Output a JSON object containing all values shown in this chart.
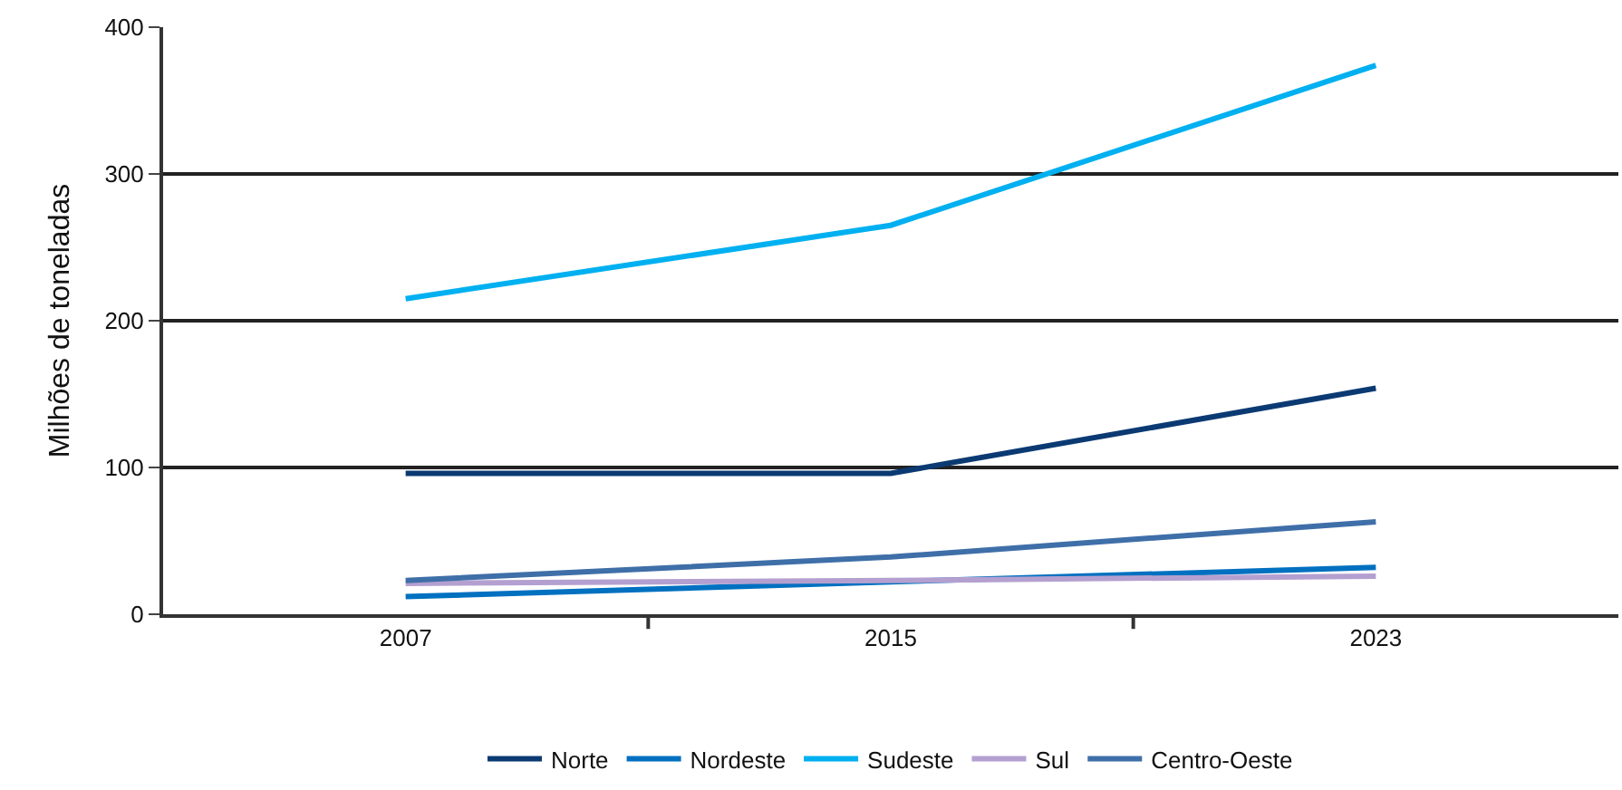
{
  "chart_data": {
    "type": "line",
    "ylabel": "Milhões de toneladas",
    "categories": [
      "2007",
      "2015",
      "2023"
    ],
    "series": [
      {
        "name": "Norte",
        "color": "#0b3a73",
        "values": [
          96,
          96,
          154
        ]
      },
      {
        "name": "Nordeste",
        "color": "#0070c0",
        "values": [
          12,
          22,
          32
        ]
      },
      {
        "name": "Sudeste",
        "color": "#00b0f0",
        "values": [
          215,
          265,
          374
        ]
      },
      {
        "name": "Sul",
        "color": "#b4a0d0",
        "values": [
          21,
          23,
          26
        ]
      },
      {
        "name": "Centro-Oeste",
        "color": "#3f6fa8",
        "values": [
          23,
          39,
          63
        ]
      }
    ],
    "ylim": [
      0,
      400
    ],
    "yticks": [
      0,
      100,
      200,
      300,
      400
    ],
    "grid": "y",
    "legend": "bottom",
    "marker": "none",
    "line_style": "solid"
  }
}
